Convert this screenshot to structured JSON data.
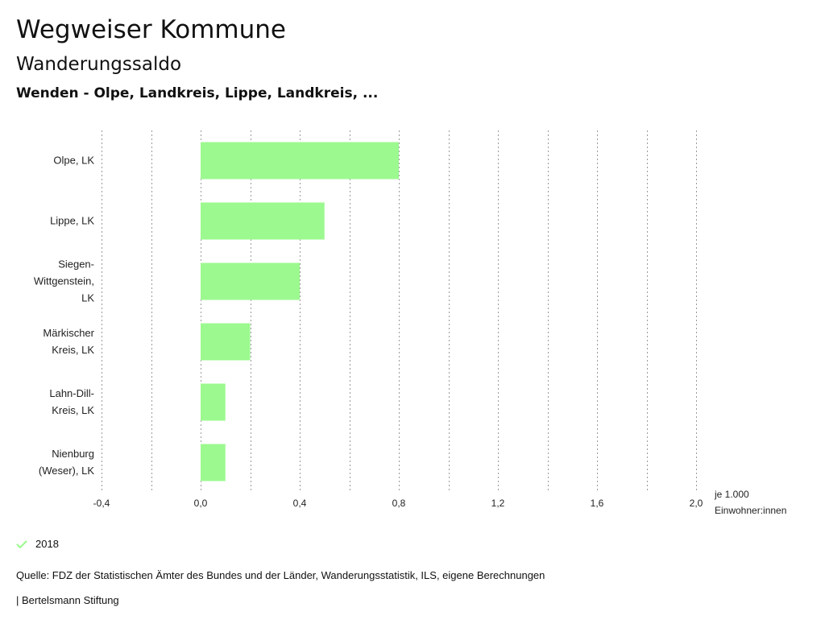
{
  "header": {
    "title": "Wegweiser Kommune",
    "subtitle": "Wanderungssaldo",
    "region": "Wenden - Olpe, Landkreis, Lippe, Landkreis, ..."
  },
  "chart_data": {
    "type": "bar",
    "orientation": "horizontal",
    "categories": [
      [
        "Olpe, LK"
      ],
      [
        "Lippe, LK"
      ],
      [
        "Siegen-",
        "Wittgenstein,",
        "LK"
      ],
      [
        "Märkischer",
        "Kreis, LK"
      ],
      [
        "Lahn-Dill-",
        "Kreis, LK"
      ],
      [
        "Nienburg",
        "(Weser), LK"
      ]
    ],
    "series": [
      {
        "name": "2018",
        "values": [
          0.8,
          0.5,
          0.4,
          0.2,
          0.1,
          0.1
        ],
        "color": "#9cf98f"
      }
    ],
    "xlim": [
      -0.4,
      2.0
    ],
    "xticks": [
      -0.4,
      0.0,
      0.4,
      0.8,
      1.2,
      1.6,
      2.0
    ],
    "tick_labels": [
      "-0,4",
      "0,0",
      "0,4",
      "0,8",
      "1,2",
      "1,6",
      "2,0"
    ],
    "unit_label": [
      "je 1.000",
      "Einwohner:innen"
    ],
    "grid": true,
    "legend_position": "bottom-left"
  },
  "legend": {
    "label": "2018",
    "color": "#9cf98f",
    "icon": "check-icon"
  },
  "source": "Quelle: FDZ der Statistischen Ämter des Bundes und der Länder, Wanderungsstatistik, ILS, eigene Berechnungen",
  "footer": "| Bertelsmann Stiftung"
}
